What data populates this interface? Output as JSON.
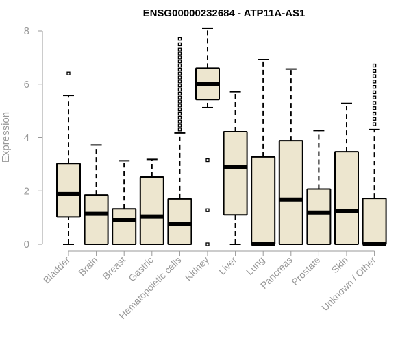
{
  "chart_data": {
    "type": "boxplot",
    "title": "ENSG00000232684 - ATP11A-AS1",
    "xlabel": "",
    "ylabel": "Expression",
    "ylim": [
      0,
      8
    ],
    "yticks": [
      0,
      2,
      4,
      6,
      8
    ],
    "box_fill": "#ede6cf",
    "box_stroke": "#000000",
    "axis_color": "#999999",
    "categories": [
      "Bladder",
      "Brain",
      "Breast",
      "Gastric",
      "Hematopoietic cells",
      "Kidney",
      "Liver",
      "Lung",
      "Pancreas",
      "Prostate",
      "Skin",
      "Unknown / Other"
    ],
    "boxes": [
      {
        "label": "Bladder",
        "min": 0,
        "q1": 1.02,
        "median": 1.88,
        "q3": 3.03,
        "max": 5.58,
        "outliers": [
          6.4
        ]
      },
      {
        "label": "Brain",
        "min": 0,
        "q1": 0,
        "median": 1.14,
        "q3": 1.85,
        "max": 3.72,
        "outliers": []
      },
      {
        "label": "Breast",
        "min": 0,
        "q1": 0,
        "median": 0.9,
        "q3": 1.33,
        "max": 3.13,
        "outliers": []
      },
      {
        "label": "Gastric",
        "min": 0,
        "q1": 0,
        "median": 1.04,
        "q3": 2.52,
        "max": 3.18,
        "outliers": []
      },
      {
        "label": "Hematopoietic cells",
        "min": 0,
        "q1": 0,
        "median": 0.77,
        "q3": 1.7,
        "max": 4.17,
        "outliers": [
          4.3,
          4.45,
          4.6,
          4.75,
          4.9,
          5.05,
          5.2,
          5.35,
          5.5,
          5.65,
          5.8,
          5.95,
          6.1,
          6.25,
          6.4,
          6.55,
          6.7,
          6.85,
          7.0,
          7.15,
          7.3,
          7.5,
          7.7
        ]
      },
      {
        "label": "Kidney",
        "min": 5.12,
        "q1": 5.42,
        "median": 6.02,
        "q3": 6.6,
        "max": 8.08,
        "outliers": [
          3.15,
          1.28,
          0
        ]
      },
      {
        "label": "Liver",
        "min": 0,
        "q1": 1.1,
        "median": 2.88,
        "q3": 4.22,
        "max": 5.72,
        "outliers": []
      },
      {
        "label": "Lung",
        "min": 0,
        "q1": 0,
        "median": 0,
        "q3": 3.27,
        "max": 6.92,
        "outliers": []
      },
      {
        "label": "Pancreas",
        "min": 0,
        "q1": 0,
        "median": 1.68,
        "q3": 3.88,
        "max": 6.57,
        "outliers": []
      },
      {
        "label": "Prostate",
        "min": 0,
        "q1": 0,
        "median": 1.19,
        "q3": 2.07,
        "max": 4.26,
        "outliers": []
      },
      {
        "label": "Skin",
        "min": 0,
        "q1": 0,
        "median": 1.24,
        "q3": 3.47,
        "max": 5.28,
        "outliers": []
      },
      {
        "label": "Unknown / Other",
        "min": 0,
        "q1": 0,
        "median": 0,
        "q3": 1.72,
        "max": 4.3,
        "outliers": [
          4.5,
          4.7,
          4.9,
          5.1,
          5.3,
          5.5,
          5.7,
          5.9,
          6.1,
          6.3,
          6.5,
          6.7
        ]
      }
    ]
  }
}
